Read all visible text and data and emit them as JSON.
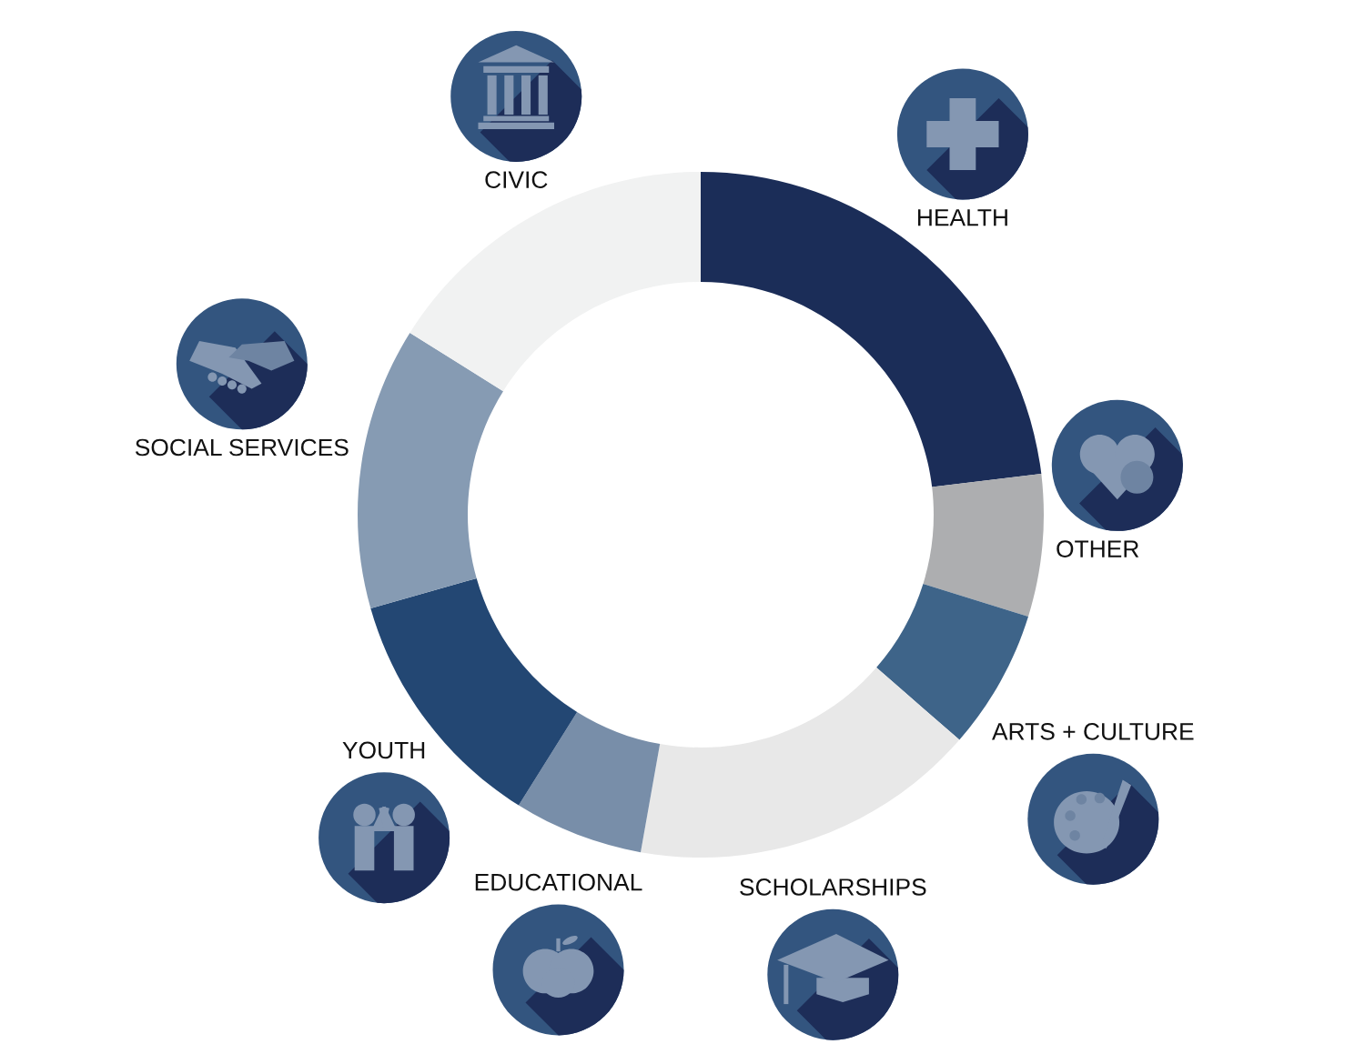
{
  "chart_data": {
    "type": "donut",
    "categories": [
      "HEALTH",
      "OTHER",
      "ARTS + CULTURE",
      "SCHOLARSHIPS",
      "EDUCATIONAL",
      "YOUTH",
      "SOCIAL SERVICES",
      "CIVIC"
    ],
    "values": [
      23.1,
      6.7,
      6.6,
      16.4,
      6.1,
      11.7,
      13.3,
      16.1
    ],
    "colors": [
      "#1b2d58",
      "#adaeb0",
      "#3e6489",
      "#e8e8e8",
      "#788ea9",
      "#234773",
      "#869bb3",
      "#f1f2f2"
    ]
  }
}
